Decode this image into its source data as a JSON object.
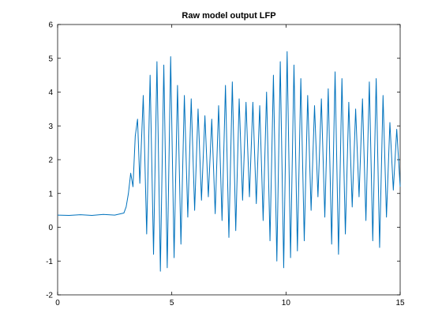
{
  "chart_data": {
    "type": "line",
    "title": "Raw model output LFP",
    "xlabel": "",
    "ylabel": "",
    "xlim": [
      0,
      15
    ],
    "ylim": [
      -2,
      6
    ],
    "x_ticks": [
      0,
      5,
      10,
      15
    ],
    "y_ticks": [
      -2,
      -1,
      0,
      1,
      2,
      3,
      4,
      5,
      6
    ],
    "x_tick_labels": [
      "0",
      "5",
      "10",
      "15"
    ],
    "y_tick_labels": [
      "-2",
      "-1",
      "0",
      "1",
      "2",
      "3",
      "4",
      "5",
      "6"
    ],
    "grid": false,
    "legend": "none",
    "line_color": "#0072BD",
    "series": [
      {
        "x": [
          0,
          0.5,
          1.0,
          1.5,
          2.0,
          2.5,
          2.9,
          3.0,
          3.1,
          3.2,
          3.3,
          3.4,
          3.5,
          3.6,
          3.75,
          3.9,
          4.05,
          4.2,
          4.35,
          4.5,
          4.65,
          4.8,
          4.95,
          5.1,
          5.25,
          5.4,
          5.55,
          5.7,
          5.85,
          6.0,
          6.15,
          6.3,
          6.45,
          6.6,
          6.75,
          6.9,
          7.05,
          7.2,
          7.35,
          7.5,
          7.65,
          7.8,
          7.95,
          8.1,
          8.25,
          8.4,
          8.55,
          8.7,
          8.85,
          9.0,
          9.15,
          9.3,
          9.45,
          9.6,
          9.75,
          9.9,
          10.05,
          10.2,
          10.35,
          10.5,
          10.65,
          10.8,
          10.95,
          11.1,
          11.25,
          11.4,
          11.55,
          11.7,
          11.85,
          12.0,
          12.15,
          12.3,
          12.45,
          12.6,
          12.75,
          12.9,
          13.05,
          13.2,
          13.35,
          13.5,
          13.65,
          13.8,
          13.95,
          14.1,
          14.25,
          14.4,
          14.55,
          14.7,
          14.85,
          15.0
        ],
        "y": [
          0.36,
          0.35,
          0.37,
          0.35,
          0.38,
          0.36,
          0.42,
          0.6,
          1.0,
          1.6,
          1.2,
          2.7,
          3.2,
          1.3,
          3.9,
          -0.2,
          4.5,
          -0.8,
          4.9,
          -1.3,
          4.8,
          -1.2,
          5.05,
          -0.9,
          4.2,
          -0.5,
          3.9,
          0.3,
          3.8,
          0.5,
          3.5,
          0.8,
          3.3,
          0.9,
          3.2,
          0.4,
          3.6,
          0.2,
          4.2,
          -0.3,
          4.3,
          -0.1,
          3.8,
          0.8,
          3.7,
          0.9,
          3.7,
          0.7,
          3.6,
          0.2,
          4.0,
          -0.4,
          4.5,
          -1.0,
          4.9,
          -1.2,
          5.2,
          -0.9,
          4.8,
          -0.7,
          4.4,
          -0.4,
          3.9,
          0.5,
          3.6,
          0.9,
          3.8,
          0.3,
          4.1,
          -0.5,
          4.6,
          -0.8,
          4.4,
          -0.2,
          3.7,
          0.6,
          3.5,
          0.9,
          3.8,
          0.2,
          4.3,
          -0.4,
          4.4,
          -0.6,
          3.9,
          0.3,
          3.1,
          1.1,
          2.9,
          1.2
        ]
      }
    ]
  }
}
